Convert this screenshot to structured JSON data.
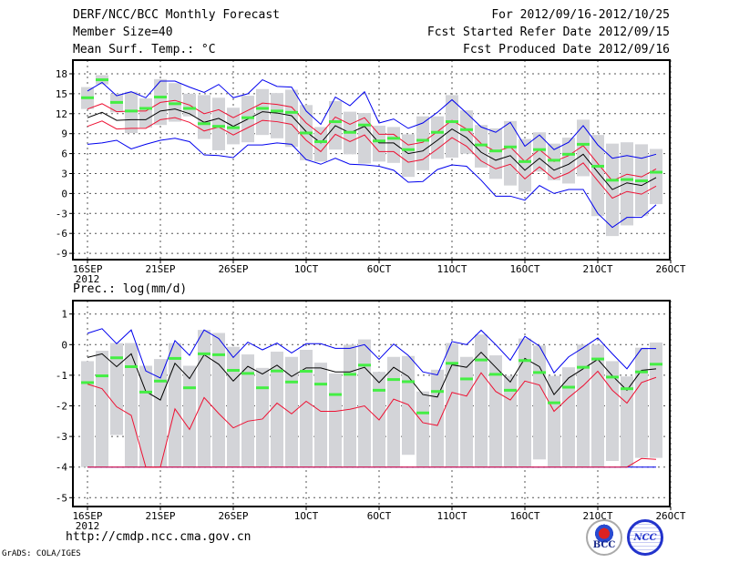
{
  "header": {
    "title": "DERF/NCC/BCC Monthly Forecast",
    "member_size": "Member Size=40",
    "variable": "Mean Surf. Temp.: °C",
    "period": "For 2012/09/16-2012/10/25",
    "start_date": "Fcst Started Refer Date 2012/09/15",
    "produced_date": "Fcst Produced Date 2012/09/16"
  },
  "footer": {
    "url": "http://cmdp.ncc.cma.gov.cn",
    "credit": "GrADS: COLA/IGES",
    "logo_bcc": "BCC",
    "logo_ncc": "NCC"
  },
  "colors": {
    "mean": "#000000",
    "band": "#ee1133",
    "extreme": "#0000ee",
    "obs": "#44ee44",
    "spread": "#d3d4d8"
  },
  "chart_data": [
    {
      "type": "line",
      "title": "Mean Surf. Temp.: °C",
      "ylim": [
        -10,
        20
      ],
      "yticks": [
        "18",
        "15",
        "12",
        "9",
        "6",
        "3",
        "0",
        "-3",
        "-6",
        "-9"
      ],
      "xticks": [
        {
          "day": 0,
          "label": "16SEP"
        },
        {
          "day": 5,
          "label": "21SEP"
        },
        {
          "day": 10,
          "label": "26SEP"
        },
        {
          "day": 15,
          "label": "1OCT"
        },
        {
          "day": 20,
          "label": "6OCT"
        },
        {
          "day": 25,
          "label": "11OCT"
        },
        {
          "day": 30,
          "label": "16OCT"
        },
        {
          "day": 35,
          "label": "21OCT"
        },
        {
          "day": 40,
          "label": "26OCT"
        }
      ],
      "year_label": "2012",
      "grid": true,
      "series": {
        "ensemble_mean": [
          11.4,
          12.2,
          11.0,
          11.1,
          11.1,
          12.4,
          12.7,
          12.0,
          10.7,
          11.3,
          10.1,
          11.2,
          12.3,
          12.1,
          11.7,
          9.3,
          7.6,
          10.2,
          9.1,
          10.1,
          7.6,
          7.6,
          6.0,
          6.4,
          8.0,
          9.7,
          8.4,
          6.2,
          5.0,
          5.7,
          3.5,
          5.3,
          3.5,
          4.4,
          5.9,
          3.2,
          0.6,
          1.6,
          1.2,
          2.4
        ],
        "band_halfwidth": 1.3,
        "ensemble_max": [
          15.4,
          16.7,
          14.7,
          15.3,
          14.4,
          16.9,
          16.9,
          16.0,
          15.2,
          16.4,
          14.4,
          15.0,
          17.1,
          16.1,
          16.0,
          12.4,
          10.4,
          14.5,
          13.2,
          15.3,
          10.6,
          11.2,
          9.8,
          10.6,
          12.2,
          14.1,
          12.1,
          10.0,
          9.2,
          10.7,
          7.1,
          8.8,
          6.6,
          7.7,
          10.2,
          7.3,
          5.3,
          5.7,
          5.3,
          5.9
        ],
        "ensemble_min": [
          7.4,
          7.6,
          8.0,
          6.7,
          7.4,
          8.0,
          8.3,
          7.8,
          5.8,
          5.7,
          5.4,
          7.3,
          7.3,
          7.6,
          7.4,
          5.1,
          4.4,
          5.3,
          4.4,
          4.3,
          4.1,
          3.5,
          1.7,
          1.8,
          3.6,
          4.3,
          4.1,
          2.0,
          -0.4,
          -0.4,
          -1.0,
          1.2,
          0.0,
          0.6,
          0.6,
          -3.0,
          -5.1,
          -3.6,
          -3.6,
          -1.7
        ],
        "observed": [
          14.4,
          17.1,
          13.7,
          12.4,
          12.8,
          14.5,
          13.5,
          12.8,
          10.5,
          10.1,
          9.9,
          11.4,
          12.8,
          12.4,
          12.2,
          9.1,
          7.8,
          10.8,
          9.2,
          10.3,
          7.9,
          8.3,
          6.6,
          8.0,
          9.2,
          10.8,
          9.6,
          7.3,
          6.4,
          7.0,
          4.8,
          6.6,
          5.0,
          5.9,
          7.4,
          4.1,
          2.0,
          2.1,
          1.9,
          3.2
        ],
        "spread_low": [
          12.7,
          16.4,
          12.2,
          9.1,
          9.9,
          10.3,
          10.8,
          11.6,
          8.2,
          6.5,
          7.4,
          7.7,
          8.8,
          8.3,
          7.0,
          5.0,
          4.8,
          6.6,
          5.9,
          4.5,
          4.8,
          4.6,
          2.5,
          3.5,
          5.2,
          5.4,
          6.0,
          3.9,
          2.2,
          1.2,
          0.3,
          3.3,
          2.0,
          1.5,
          2.6,
          -3.4,
          -6.4,
          -4.8,
          -3.4,
          -1.6
        ],
        "spread_high": [
          16.0,
          17.8,
          15.0,
          15.3,
          14.3,
          17.2,
          16.6,
          15.0,
          14.8,
          14.4,
          12.9,
          14.7,
          15.7,
          15.1,
          15.6,
          13.3,
          10.0,
          13.9,
          12.3,
          12.1,
          10.2,
          10.0,
          8.9,
          11.6,
          11.6,
          14.8,
          12.5,
          10.3,
          9.8,
          10.9,
          8.2,
          9.2,
          7.5,
          8.4,
          11.1,
          8.8,
          7.5,
          7.7,
          7.4,
          6.7
        ]
      }
    },
    {
      "type": "line",
      "title": "Prec.: log(mm/d)",
      "ylim": [
        -5,
        1.5
      ],
      "yticks": [
        "1",
        "0",
        "-1",
        "-2",
        "-3",
        "-4",
        "-5"
      ],
      "xticks": [
        {
          "day": 0,
          "label": "16SEP"
        },
        {
          "day": 5,
          "label": "21SEP"
        },
        {
          "day": 10,
          "label": "26SEP"
        },
        {
          "day": 15,
          "label": "1OCT"
        },
        {
          "day": 20,
          "label": "6OCT"
        },
        {
          "day": 25,
          "label": "11OCT"
        },
        {
          "day": 30,
          "label": "16OCT"
        },
        {
          "day": 35,
          "label": "21OCT"
        },
        {
          "day": 40,
          "label": "26OCT"
        }
      ],
      "year_label": "2012",
      "grid": true,
      "series": {
        "ensemble_mean": [
          -0.42,
          -0.3,
          -0.72,
          -0.3,
          -1.53,
          -1.81,
          -0.61,
          -1.11,
          -0.33,
          -0.64,
          -1.19,
          -0.71,
          -0.96,
          -0.67,
          -1.04,
          -0.76,
          -0.76,
          -0.89,
          -0.89,
          -0.74,
          -1.24,
          -0.74,
          -1.04,
          -1.63,
          -1.71,
          -0.66,
          -0.74,
          -0.25,
          -0.74,
          -1.22,
          -0.45,
          -0.72,
          -1.63,
          -1.09,
          -0.79,
          -0.48,
          -1.02,
          -1.49,
          -0.84,
          -0.79
        ],
        "ensemble_max": [
          0.37,
          0.52,
          0.03,
          0.48,
          -0.86,
          -1.09,
          0.13,
          -0.35,
          0.48,
          0.2,
          -0.42,
          0.08,
          -0.17,
          0.05,
          -0.27,
          0.03,
          0.03,
          -0.12,
          -0.12,
          0.0,
          -0.48,
          0.02,
          -0.35,
          -0.89,
          -0.99,
          0.1,
          0.0,
          0.47,
          0.0,
          -0.51,
          0.27,
          -0.05,
          -0.92,
          -0.4,
          -0.1,
          0.22,
          -0.3,
          -0.79,
          -0.13,
          -0.13
        ],
        "band_lower": [
          -1.29,
          -1.44,
          -2.03,
          -2.31,
          -4,
          -4,
          -2.1,
          -2.77,
          -1.73,
          -2.25,
          -2.72,
          -2.5,
          -2.43,
          -1.91,
          -2.26,
          -1.85,
          -2.18,
          -2.18,
          -2.11,
          -2.0,
          -2.46,
          -1.78,
          -1.96,
          -2.55,
          -2.64,
          -1.56,
          -1.68,
          -0.92,
          -1.53,
          -1.81,
          -1.19,
          -1.32,
          -2.18,
          -1.73,
          -1.34,
          -0.87,
          -1.49,
          -1.91,
          -1.24,
          -1.07
        ],
        "band_min": [
          -4,
          -4,
          -4,
          -4,
          -4,
          -4,
          -4,
          -4,
          -4,
          -4,
          -4,
          -4,
          -4,
          -4,
          -4,
          -4,
          -4,
          -4,
          -4,
          -4,
          -4,
          -4,
          -4,
          -4,
          -4,
          -4,
          -4,
          -4,
          -4,
          -4,
          -4,
          -4,
          -4,
          -4,
          -4,
          -4,
          -4,
          -4,
          -3.72,
          -3.75
        ],
        "ensemble_min": [
          -4,
          -4,
          -4,
          -4,
          -4,
          -4,
          -4,
          -4,
          -4,
          -4,
          -4,
          -4,
          -4,
          -4,
          -4,
          -4,
          -4,
          -4,
          -4,
          -4,
          -4,
          -4,
          -4,
          -4,
          -4,
          -4,
          -4,
          -4,
          -4,
          -4,
          -4,
          -4,
          -4,
          -4,
          -4,
          -4,
          -4,
          -4,
          -4,
          -4
        ],
        "observed": [
          -1.24,
          -1.02,
          -0.43,
          -0.72,
          -1.55,
          -1.19,
          -0.45,
          -1.41,
          -0.3,
          -0.33,
          -0.84,
          -0.94,
          -1.41,
          -0.86,
          -1.22,
          -0.87,
          -1.29,
          -1.63,
          -0.97,
          -0.67,
          -1.49,
          -1.14,
          -1.21,
          -2.23,
          -1.53,
          -0.61,
          -1.12,
          -0.5,
          -0.97,
          -1.49,
          -0.52,
          -0.91,
          -1.9,
          -1.39,
          -0.74,
          -0.47,
          -1.06,
          -1.44,
          -0.89,
          -0.64
        ],
        "spread_high": [
          -0.54,
          -0.2,
          0.05,
          0.05,
          -0.69,
          -0.47,
          0.05,
          -0.69,
          0.48,
          0.38,
          -0.07,
          -0.32,
          -0.76,
          -0.23,
          -0.4,
          -0.17,
          -0.59,
          -0.94,
          0.0,
          0.17,
          -0.89,
          -0.4,
          -0.37,
          -1.53,
          -0.82,
          0.05,
          -0.4,
          0.33,
          -0.35,
          -1.02,
          0.2,
          -0.03,
          -1.02,
          -0.74,
          0.0,
          0.0,
          -0.54,
          -1.04,
          -0.1,
          0.07
        ],
        "spread_low": [
          -4,
          -4,
          -2.95,
          -4,
          -4,
          -4,
          -4,
          -4,
          -4,
          -4,
          -4,
          -4,
          -4,
          -4,
          -4,
          -4,
          -4,
          -4,
          -4,
          -4,
          -4,
          -4,
          -3.6,
          -4,
          -4,
          -4,
          -4,
          -4,
          -4,
          -4,
          -4,
          -3.75,
          -4,
          -4,
          -4,
          -4,
          -3.8,
          -4,
          -3.7,
          -3.7
        ]
      }
    }
  ]
}
